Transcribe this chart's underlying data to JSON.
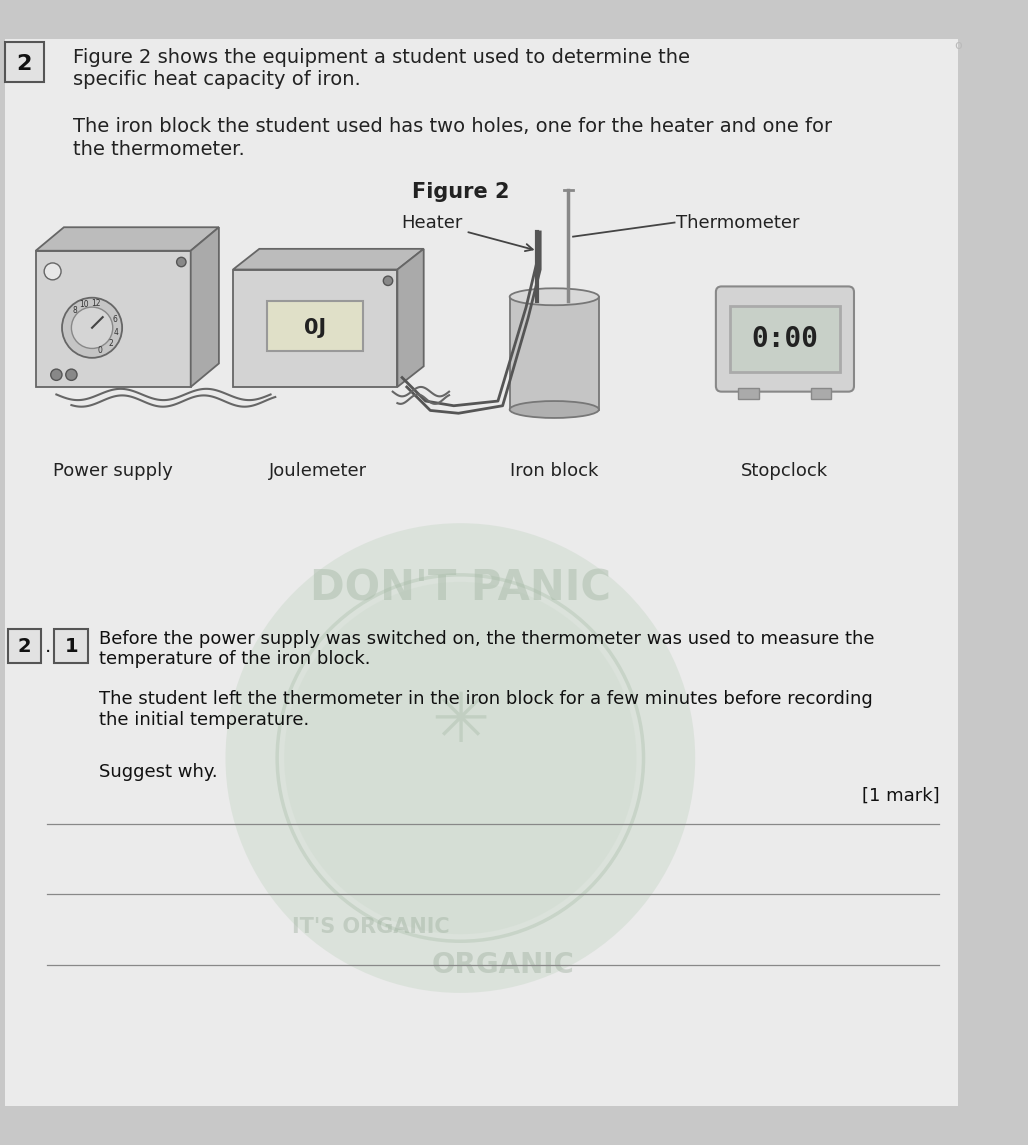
{
  "bg_color": "#c8c8c8",
  "page_bg": "#ebebeb",
  "text_color": "#222222",
  "title_line1": "Figure 2 shows the equipment a student used to determine the",
  "title_line2": "specific heat capacity of iron.",
  "body_line1": "The iron block the student used has two holes, one for the heater and one for",
  "body_line2": "the thermometer.",
  "figure_label": "Figure 2",
  "heater_label": "Heater",
  "thermometer_label": "Thermometer",
  "power_supply_label": "Power supply",
  "joulemeter_label": "Joulemeter",
  "iron_block_label": "Iron block",
  "stopclock_label": "Stopclock",
  "joulemeter_display": "0J",
  "stopclock_display": "0:00",
  "question_num_outer": "2",
  "question_num_inner": "1",
  "q_line1": "Before the power supply was switched on, the thermometer was used to measure the",
  "q_line2": "temperature of the iron block.",
  "q_body1": "The student left the thermometer in the iron block for a few minutes before recording",
  "q_body2": "the initial temperature.",
  "q_suggest": "Suggest why.",
  "mark": "[1 mark]",
  "answer_lines": 3,
  "wm_text1": "DON'T PANIC",
  "wm_text2": "IT'S ORGANIC",
  "wm_text3": "ORGANIC"
}
